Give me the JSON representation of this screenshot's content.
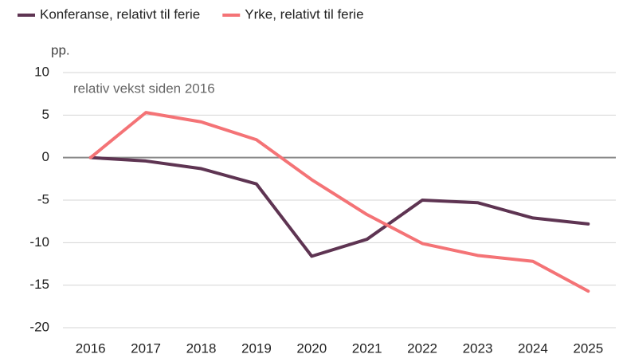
{
  "chart_data": {
    "type": "line",
    "y_label": "pp.",
    "annotation": "relativ vekst siden 2016",
    "categories": [
      "2016",
      "2017",
      "2018",
      "2019",
      "2020",
      "2021",
      "2022",
      "2023",
      "2024",
      "2025"
    ],
    "series": [
      {
        "name": "Konferanse, relativt til ferie",
        "color": "#5e3452",
        "values": [
          0,
          -0.4,
          -1.3,
          -3.1,
          -11.6,
          -9.6,
          -5.0,
          -5.3,
          -7.1,
          -7.8
        ]
      },
      {
        "name": "Yrke, relativt til ferie",
        "color": "#f47376",
        "values": [
          0,
          5.3,
          4.2,
          2.1,
          -2.6,
          -6.7,
          -10.1,
          -11.5,
          -12.2,
          -15.7
        ]
      }
    ],
    "ylim": [
      -20,
      10
    ],
    "yticks": [
      -20,
      -15,
      -10,
      -5,
      0,
      5,
      10
    ],
    "grid": true,
    "legend": "top-left"
  }
}
